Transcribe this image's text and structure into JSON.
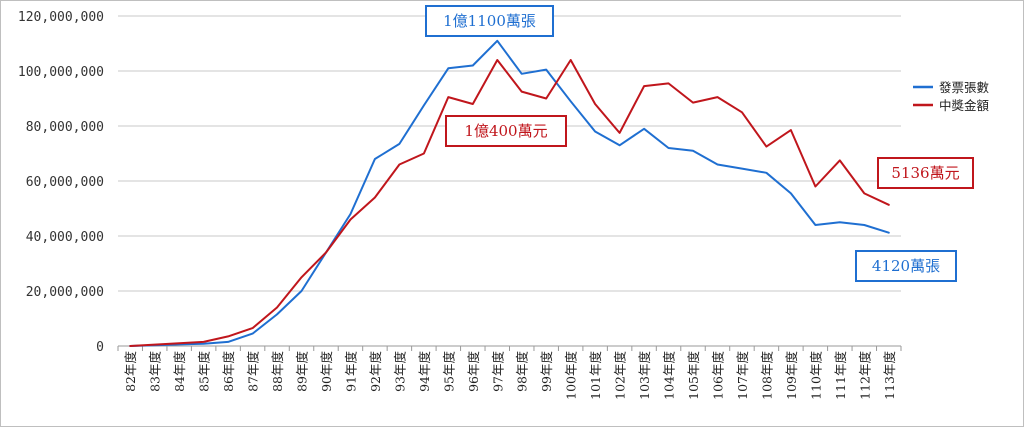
{
  "chart_data": {
    "type": "line",
    "title": "",
    "xlabel": "",
    "ylabel": "",
    "categories": [
      "82年度",
      "83年度",
      "84年度",
      "85年度",
      "86年度",
      "87年度",
      "88年度",
      "89年度",
      "90年度",
      "91年度",
      "92年度",
      "93年度",
      "94年度",
      "95年度",
      "96年度",
      "97年度",
      "98年度",
      "99年度",
      "100年度",
      "101年度",
      "102年度",
      "103年度",
      "104年度",
      "105年度",
      "106年度",
      "107年度",
      "108年度",
      "109年度",
      "110年度",
      "111年度",
      "112年度",
      "113年度"
    ],
    "ylim": [
      0,
      120000000
    ],
    "yticks": [
      0,
      20000000,
      40000000,
      60000000,
      80000000,
      100000000,
      120000000
    ],
    "ytick_labels": [
      "0",
      "20,000,000",
      "40,000,000",
      "60,000,000",
      "80,000,000",
      "100,000,000",
      "120,000,000"
    ],
    "grid": true,
    "legend_position": "right",
    "series": [
      {
        "name": "發票張數",
        "color": "#1f6fd1",
        "values": [
          0,
          300000,
          600000,
          800000,
          1500000,
          4500000,
          11500000,
          20000000,
          34000000,
          48000000,
          68000000,
          73500000,
          87500000,
          101000000,
          102000000,
          111000000,
          99000000,
          100500000,
          89000000,
          78000000,
          73000000,
          79000000,
          72000000,
          71000000,
          66000000,
          64500000,
          63000000,
          55500000,
          44000000,
          45000000,
          44000000,
          41200000
        ]
      },
      {
        "name": "中獎金額",
        "color": "#c0161c",
        "values": [
          0,
          500000,
          1000000,
          1500000,
          3500000,
          6500000,
          14000000,
          25000000,
          34000000,
          46000000,
          54000000,
          66000000,
          70000000,
          90500000,
          88000000,
          104000000,
          92500000,
          90000000,
          104000000,
          88000000,
          77500000,
          94500000,
          95500000,
          88500000,
          90500000,
          85000000,
          72500000,
          78500000,
          58000000,
          67500000,
          55500000,
          51360000
        ]
      }
    ],
    "annotations": [
      {
        "text": "1億1100萬張",
        "color": "#1f6fd1"
      },
      {
        "text": "1億400萬元",
        "color": "#c0161c"
      },
      {
        "text": "5136萬元",
        "color": "#c0161c"
      },
      {
        "text": "4120萬張",
        "color": "#1f6fd1"
      }
    ]
  }
}
